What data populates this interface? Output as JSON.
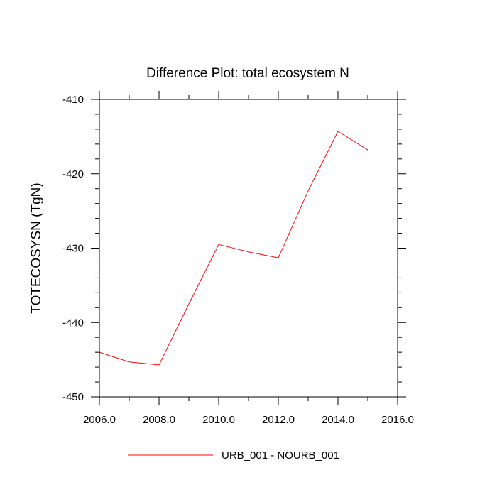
{
  "chart_data": {
    "type": "line",
    "title": "Difference Plot: total ecosystem N",
    "xlabel": "",
    "ylabel": "TOTECOSYSN  (TgN)",
    "xlim": [
      2006,
      2016
    ],
    "ylim": [
      -450,
      -410
    ],
    "x_ticks": [
      2006,
      2008,
      2010,
      2012,
      2014,
      2016
    ],
    "x_tick_labels": [
      "2006.0",
      "2008.0",
      "2010.0",
      "2012.0",
      "2014.0",
      "2016.0"
    ],
    "y_ticks": [
      -450,
      -440,
      -430,
      -420,
      -410
    ],
    "y_tick_labels": [
      "-450",
      "-440",
      "-430",
      "-420",
      "-410"
    ],
    "grid": false,
    "legend_position": "bottom-center",
    "series": [
      {
        "name": "URB_001 - NOURB_001",
        "color": "#ff0000",
        "x": [
          2006,
          2007,
          2008,
          2009,
          2010,
          2011,
          2012,
          2013,
          2014,
          2015
        ],
        "values": [
          -444.0,
          -445.3,
          -445.7,
          -437.5,
          -429.5,
          -430.5,
          -431.3,
          -422.3,
          -414.3,
          -416.8
        ]
      }
    ]
  }
}
